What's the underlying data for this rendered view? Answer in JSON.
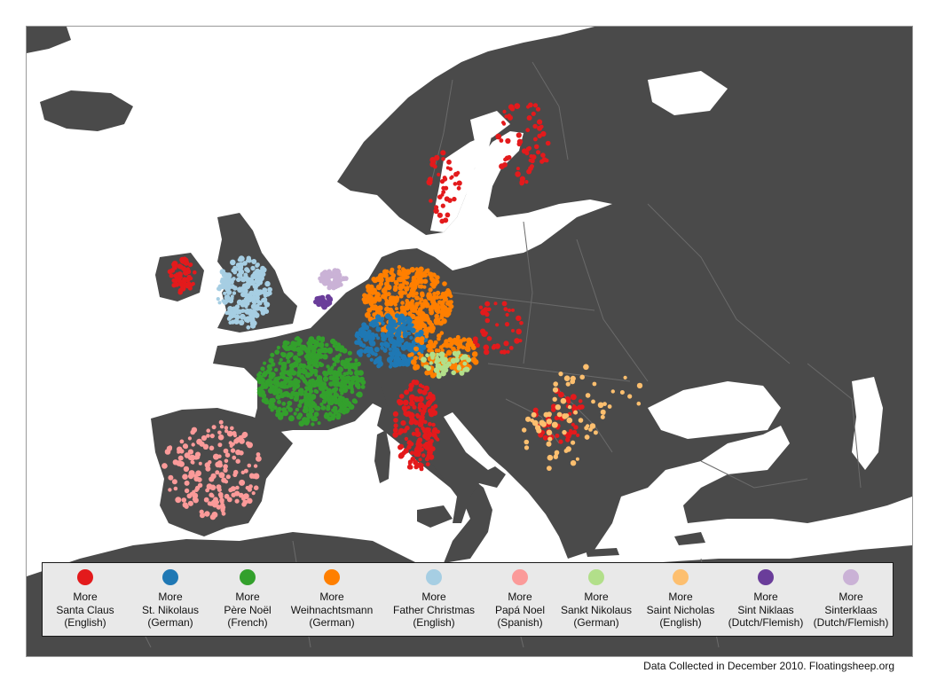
{
  "colors": {
    "land": "#4a4a4a",
    "water": "#ffffff",
    "border_lines": "#6a6a6a",
    "legend_bg": "#e9e9e9"
  },
  "legend": {
    "items": [
      {
        "line1": "More",
        "line2": "Santa Claus",
        "line3": "(English)",
        "color": "#e31a1c"
      },
      {
        "line1": "More",
        "line2": "St. Nikolaus",
        "line3": "(German)",
        "color": "#1f78b4"
      },
      {
        "line1": "More",
        "line2": "Père Noël",
        "line3": "(French)",
        "color": "#33a02c"
      },
      {
        "line1": "More",
        "line2": "Weihnachtsmann",
        "line3": "(German)",
        "color": "#ff7f00"
      },
      {
        "line1": "More",
        "line2": "Father Christmas",
        "line3": "(English)",
        "color": "#a6cee3"
      },
      {
        "line1": "More",
        "line2": "Papá Noel",
        "line3": "(Spanish)",
        "color": "#fb9a99"
      },
      {
        "line1": "More",
        "line2": "Sankt Nikolaus",
        "line3": "(German)",
        "color": "#b2df8a"
      },
      {
        "line1": "More",
        "line2": "Saint Nicholas",
        "line3": "(English)",
        "color": "#fdbf6f"
      },
      {
        "line1": "More",
        "line2": "Sint Niklaas",
        "line3": "(Dutch/Flemish)",
        "color": "#6a3d9a"
      },
      {
        "line1": "More",
        "line2": "Sinterklaas",
        "line3": "(Dutch/Flemish)",
        "color": "#cab2d6"
      }
    ]
  },
  "footer": {
    "credit": "Data Collected in December 2010. Floatingsheep.org"
  }
}
